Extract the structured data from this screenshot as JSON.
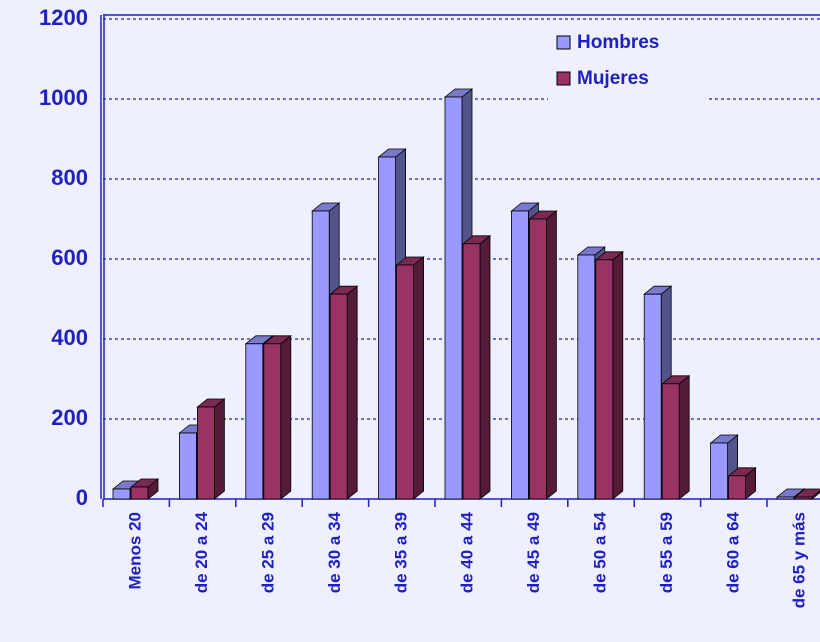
{
  "chart_data": {
    "type": "bar3d",
    "categories": [
      "Menos 20",
      "de 20 a 24",
      "de 25 a 29",
      "de 30 a 34",
      "de 35 a 39",
      "de 40 a 44",
      "de 45 a 49",
      "de 50 a 54",
      "de 55 a 59",
      "de 60 a 64",
      "de 65 y más"
    ],
    "series": [
      {
        "name": "Hombres",
        "color": "#9999ff",
        "values": [
          25,
          165,
          388,
          720,
          855,
          1005,
          720,
          610,
          512,
          140,
          5
        ]
      },
      {
        "name": "Mujeres",
        "color": "#993366",
        "values": [
          30,
          230,
          388,
          512,
          585,
          638,
          700,
          598,
          288,
          58,
          5
        ]
      }
    ],
    "ylim": [
      0,
      1200
    ],
    "yticks": [
      0,
      200,
      400,
      600,
      800,
      1000,
      1200
    ],
    "grid": true,
    "legend": "top-right"
  }
}
